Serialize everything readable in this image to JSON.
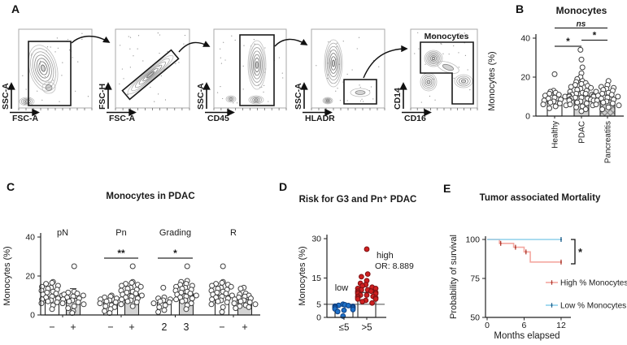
{
  "panels": {
    "A": {
      "label": "A",
      "plots": [
        {
          "ylabel": "SSC-A",
          "xlabel": "FSC-A"
        },
        {
          "ylabel": "FSC-H",
          "xlabel": "FSC-A"
        },
        {
          "ylabel": "SSC-A",
          "xlabel": "CD45"
        },
        {
          "ylabel": "SSC-A",
          "xlabel": "HLADR"
        },
        {
          "ylabel": "CD14",
          "xlabel": "CD16",
          "gate_label": "Monocytes"
        }
      ]
    },
    "B": {
      "label": "B"
    },
    "C": {
      "label": "C"
    },
    "D": {
      "label": "D"
    },
    "E": {
      "label": "E"
    }
  },
  "chart_data": [
    {
      "id": "B",
      "type": "bar",
      "title": "Monocytes",
      "ylabel": "Monocytes (%)",
      "ylim": [
        0,
        40
      ],
      "yticks": [
        0,
        20,
        40
      ],
      "categories": [
        "Healthy",
        "PDAC",
        "Pancreatitis"
      ],
      "bar_means": [
        7.9,
        10.4,
        8.3
      ],
      "error_caps": [
        10.8,
        12.5,
        10.8
      ],
      "bar_styles": [
        "plain",
        "gray",
        "hatch"
      ],
      "points": [
        [
          21.5,
          13,
          12.5,
          12,
          11.5,
          11,
          10.5,
          10,
          9.5,
          9,
          8.5,
          8,
          7.5,
          7,
          6.5,
          6,
          5.5,
          5,
          4
        ],
        [
          34,
          29,
          25,
          22,
          20,
          19,
          18,
          17.5,
          17,
          16.5,
          16,
          15.5,
          15,
          14.5,
          14,
          13.5,
          13,
          12.5,
          12,
          11.5,
          11.5,
          11,
          11,
          10.5,
          10.5,
          10,
          10,
          9.5,
          9.5,
          9,
          9,
          8.5,
          8.5,
          8,
          8,
          7.5,
          7,
          6.5,
          6,
          5.5,
          5,
          4.5,
          3.5,
          2.5
        ],
        [
          18,
          16,
          15,
          14.5,
          14,
          13.5,
          13,
          12.5,
          12,
          11.5,
          11,
          10.5,
          10,
          9.5,
          9,
          8.5,
          8,
          7.5,
          7,
          6.5,
          6,
          5.5,
          4.5,
          3.5
        ]
      ],
      "significance": [
        {
          "a": 0,
          "b": 1,
          "label": "*"
        },
        {
          "a": 1,
          "b": 2,
          "label": "*"
        },
        {
          "a": 0,
          "b": 2,
          "label": "ns"
        }
      ]
    },
    {
      "id": "C",
      "type": "bar",
      "title": "Monocytes in PDAC",
      "ylabel": "Monocytes (%)",
      "ylim": [
        0,
        40
      ],
      "yticks": [
        0,
        20,
        40
      ],
      "groups": [
        {
          "label": "pN",
          "cats": [
            "−",
            "+"
          ]
        },
        {
          "label": "Pn",
          "cats": [
            "−",
            "+"
          ]
        },
        {
          "label": "Grading",
          "cats": [
            "2",
            "3"
          ]
        },
        {
          "label": "R",
          "cats": [
            "−",
            "+"
          ]
        }
      ],
      "bar_means": [
        9.2,
        8.6,
        6.6,
        11,
        6.4,
        11,
        10,
        8
      ],
      "error_caps": [
        null,
        13.5,
        null,
        null,
        null,
        null,
        null,
        null
      ],
      "bar_styles": [
        "plain",
        "gray",
        "plain",
        "gray",
        "plain",
        "gray",
        "plain",
        "gray"
      ],
      "points": [
        [
          17,
          16.5,
          16,
          15,
          14.5,
          14,
          13.5,
          13,
          12.5,
          12,
          11.5,
          11,
          10.5,
          10,
          9.5,
          9,
          8.5,
          8,
          7.5,
          7,
          6.5,
          6,
          5,
          3
        ],
        [
          25,
          12,
          11.5,
          11,
          10.5,
          10,
          9.5,
          9,
          8.5,
          8,
          7.5,
          7,
          6.5,
          6,
          5.5,
          4.5,
          3.5,
          2,
          1
        ],
        [
          10,
          9.5,
          9,
          8.5,
          8,
          7.5,
          7,
          6.5,
          6,
          5.5,
          5,
          4.5,
          4,
          3,
          2,
          1
        ],
        [
          25,
          17,
          16.5,
          16,
          15.5,
          15,
          14.5,
          14,
          13.5,
          13,
          12.5,
          12,
          11.5,
          11,
          10.5,
          10,
          9.5,
          9,
          8.5,
          8,
          7.5,
          7,
          6.5,
          5.5,
          4.5
        ],
        [
          14,
          9,
          8.5,
          8,
          7.5,
          7,
          6.5,
          6,
          5,
          4,
          2.5,
          1.5
        ],
        [
          25,
          17.5,
          17,
          16,
          15.5,
          15,
          14.5,
          14,
          13.5,
          13,
          12.5,
          12,
          11.5,
          11,
          10.5,
          10,
          9.5,
          9,
          8.5,
          8,
          7.5,
          7,
          6,
          5,
          3
        ],
        [
          25,
          17,
          16.5,
          16,
          15.5,
          15,
          14.5,
          14,
          13.5,
          13,
          12.5,
          12,
          11.5,
          11,
          10.5,
          10,
          9.5,
          9,
          8.5,
          8,
          7.5,
          7,
          6.5,
          5.5,
          4,
          1.5
        ],
        [
          14,
          13.5,
          11,
          10.5,
          10,
          9.5,
          9,
          8.5,
          8,
          7.5,
          7,
          6.5,
          6,
          5.5,
          5,
          4.5,
          4,
          3.5
        ]
      ],
      "significance": [
        {
          "a": 2,
          "b": 3,
          "label": "**"
        },
        {
          "a": 4,
          "b": 5,
          "label": "*"
        }
      ]
    },
    {
      "id": "D",
      "type": "scatter",
      "title": "Risk for G3 and Pn⁺ PDAC",
      "ylabel": "Monocytes (%)",
      "ylim": [
        0,
        30
      ],
      "yticks": [
        0,
        5,
        15,
        30
      ],
      "categories": [
        "≤5",
        ">5"
      ],
      "bar_means": [
        4.6,
        9.5
      ],
      "threshold": 5,
      "colors": [
        "#1d70c8",
        "#cf2020"
      ],
      "point_strokes": [
        "#0d3e80",
        "#7c1113"
      ],
      "group_labels": [
        "low",
        "high"
      ],
      "annotation": "OR: 8.889",
      "points": [
        [
          5,
          4.8,
          4.6,
          4.5,
          4.3,
          4.2,
          4,
          3.9,
          3.7,
          3.5,
          3.2,
          3,
          2.7,
          2.2,
          0.5
        ],
        [
          26,
          16.5,
          15.5,
          14,
          13,
          12.5,
          12,
          11.5,
          11,
          11,
          10.5,
          10.5,
          10,
          10,
          9.5,
          9.5,
          9,
          9,
          8.5,
          8.5,
          8,
          8,
          7.5,
          7.5,
          7,
          7,
          6.5,
          6,
          5.5
        ]
      ]
    },
    {
      "id": "E",
      "type": "line",
      "title": "Tumor associated Mortality",
      "xlabel": "Months elapsed",
      "ylabel": "Probability of survival",
      "xlim": [
        0,
        12
      ],
      "xticks": [
        0,
        6,
        12
      ],
      "ylim": [
        50,
        100
      ],
      "yticks": [
        50,
        75,
        100
      ],
      "significance": "*",
      "series": [
        {
          "name": "High % Monocytes",
          "color": "#f4a7a0",
          "marker_color": "#b03a2e",
          "steps": [
            [
              0,
              100
            ],
            [
              2,
              100
            ],
            [
              2,
              97.5
            ],
            [
              4.3,
              97.5
            ],
            [
              4.3,
              95
            ],
            [
              6,
              95
            ],
            [
              6,
              92
            ],
            [
              7,
              92
            ],
            [
              7,
              85.5
            ],
            [
              12,
              85.5
            ]
          ],
          "censors": [
            [
              2.2,
              97.5
            ],
            [
              4.6,
              95
            ],
            [
              6.3,
              92
            ],
            [
              12,
              85.5
            ]
          ]
        },
        {
          "name": "Low % Monocytes",
          "color": "#8ed0ec",
          "marker_color": "#1f618d",
          "steps": [
            [
              0,
              100
            ],
            [
              12,
              100
            ]
          ],
          "censors": [
            [
              12,
              100
            ]
          ]
        }
      ]
    }
  ]
}
